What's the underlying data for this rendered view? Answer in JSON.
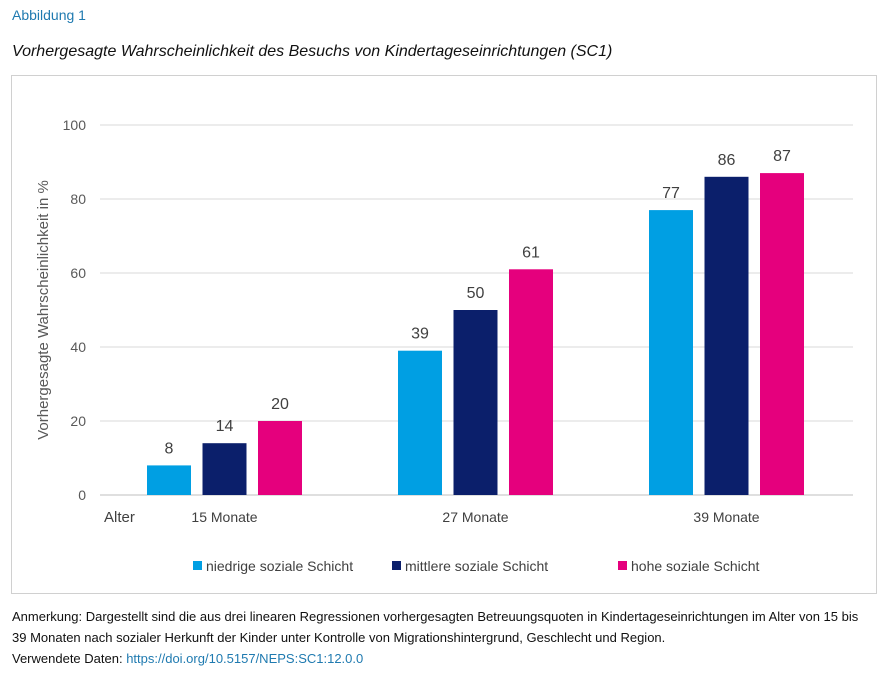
{
  "figure_label": "Abbildung 1",
  "chart_data": {
    "type": "bar",
    "title": "Vorhergesagte Wahrscheinlichkeit des Besuchs von Kindertageseinrichtungen (SC1)",
    "xlabel": "Alter",
    "ylabel": "Vorhergesagte Wahrscheinlichkeit in %",
    "ylim": [
      0,
      100
    ],
    "yticks": [
      0,
      20,
      40,
      60,
      80,
      100
    ],
    "grid": true,
    "legend_position": "bottom",
    "categories": [
      "15 Monate",
      "27 Monate",
      "39 Monate"
    ],
    "series": [
      {
        "name": "niedrige soziale Schicht",
        "color": "#009fe3",
        "values": [
          8,
          39,
          77
        ]
      },
      {
        "name": "mittlere soziale Schicht",
        "color": "#0b1f6b",
        "values": [
          14,
          50,
          86
        ]
      },
      {
        "name": "hohe soziale Schicht",
        "color": "#e5007d",
        "values": [
          20,
          61,
          87
        ]
      }
    ]
  },
  "note": "Anmerkung: Dargestellt sind die aus drei linearen Regressionen vorhergesagten Betreuungsquoten in Kindertageseinrichtungen im Alter von 15 bis 39 Monaten nach sozialer Herkunft der Kinder unter Kontrolle von Migrationshintergrund, Geschlecht und Region.",
  "data_source": {
    "label": "Verwendete Daten:",
    "link": "https://doi.org/10.5157/NEPS:SC1:12.0.0"
  }
}
